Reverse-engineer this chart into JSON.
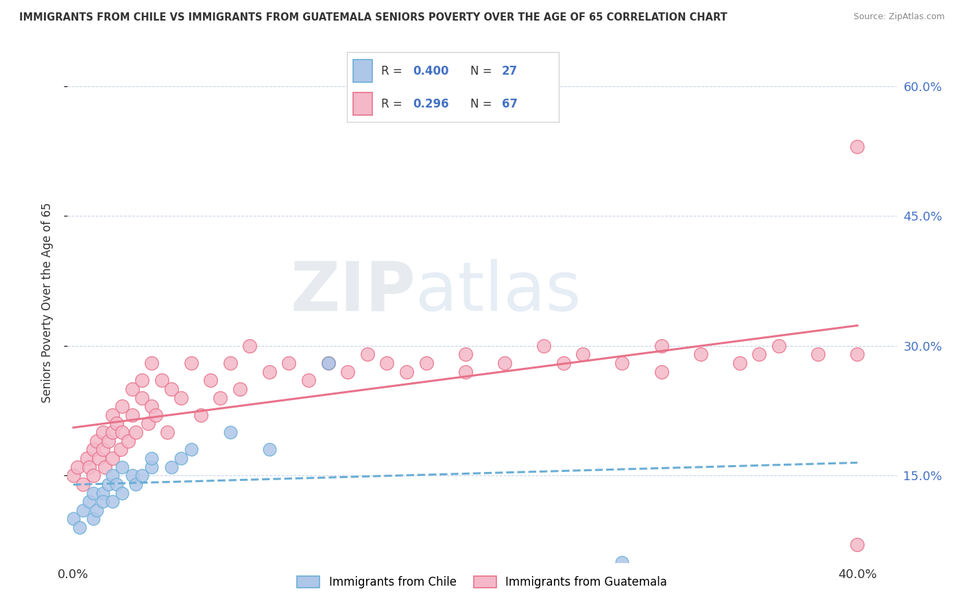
{
  "title": "IMMIGRANTS FROM CHILE VS IMMIGRANTS FROM GUATEMALA SENIORS POVERTY OVER THE AGE OF 65 CORRELATION CHART",
  "source": "Source: ZipAtlas.com",
  "ylabel": "Seniors Poverty Over the Age of 65",
  "ylim": [
    0.05,
    0.65
  ],
  "xlim": [
    -0.003,
    0.42
  ],
  "yticks": [
    0.15,
    0.3,
    0.45,
    0.6
  ],
  "chile_color": "#aec6e8",
  "chile_edge": "#6aaed6",
  "chile_line_color": "#6aaed6",
  "guatemala_color": "#f4b8c8",
  "guatemala_edge": "#e8728a",
  "guatemala_line_color": "#e8728a",
  "chile_R": 0.4,
  "chile_N": 27,
  "guatemala_R": 0.296,
  "guatemala_N": 67,
  "chile_scatter_x": [
    0.0,
    0.003,
    0.005,
    0.008,
    0.01,
    0.01,
    0.012,
    0.015,
    0.015,
    0.018,
    0.02,
    0.02,
    0.022,
    0.025,
    0.025,
    0.03,
    0.032,
    0.035,
    0.04,
    0.04,
    0.05,
    0.055,
    0.06,
    0.08,
    0.1,
    0.28,
    0.13
  ],
  "chile_scatter_y": [
    0.1,
    0.09,
    0.11,
    0.12,
    0.1,
    0.13,
    0.11,
    0.13,
    0.12,
    0.14,
    0.12,
    0.15,
    0.14,
    0.13,
    0.16,
    0.15,
    0.14,
    0.15,
    0.16,
    0.17,
    0.16,
    0.17,
    0.18,
    0.2,
    0.18,
    0.05,
    0.28
  ],
  "guatemala_scatter_x": [
    0.0,
    0.002,
    0.005,
    0.007,
    0.008,
    0.01,
    0.01,
    0.012,
    0.013,
    0.015,
    0.015,
    0.016,
    0.018,
    0.02,
    0.02,
    0.02,
    0.022,
    0.024,
    0.025,
    0.025,
    0.028,
    0.03,
    0.03,
    0.032,
    0.035,
    0.035,
    0.038,
    0.04,
    0.04,
    0.042,
    0.045,
    0.048,
    0.05,
    0.055,
    0.06,
    0.065,
    0.07,
    0.075,
    0.08,
    0.085,
    0.09,
    0.1,
    0.11,
    0.12,
    0.13,
    0.14,
    0.15,
    0.16,
    0.17,
    0.18,
    0.2,
    0.22,
    0.24,
    0.26,
    0.28,
    0.3,
    0.32,
    0.34,
    0.36,
    0.38,
    0.4,
    0.4,
    0.35,
    0.3,
    0.25,
    0.2,
    0.4
  ],
  "guatemala_scatter_y": [
    0.15,
    0.16,
    0.14,
    0.17,
    0.16,
    0.18,
    0.15,
    0.19,
    0.17,
    0.2,
    0.18,
    0.16,
    0.19,
    0.2,
    0.17,
    0.22,
    0.21,
    0.18,
    0.2,
    0.23,
    0.19,
    0.22,
    0.25,
    0.2,
    0.24,
    0.26,
    0.21,
    0.23,
    0.28,
    0.22,
    0.26,
    0.2,
    0.25,
    0.24,
    0.28,
    0.22,
    0.26,
    0.24,
    0.28,
    0.25,
    0.3,
    0.27,
    0.28,
    0.26,
    0.28,
    0.27,
    0.29,
    0.28,
    0.27,
    0.28,
    0.29,
    0.28,
    0.3,
    0.29,
    0.28,
    0.27,
    0.29,
    0.28,
    0.3,
    0.29,
    0.07,
    0.29,
    0.29,
    0.3,
    0.28,
    0.27,
    0.53
  ],
  "background_color": "#ffffff",
  "grid_color": "#c8d4e8",
  "legend_labels": [
    "Immigrants from Chile",
    "Immigrants from Guatemala"
  ]
}
